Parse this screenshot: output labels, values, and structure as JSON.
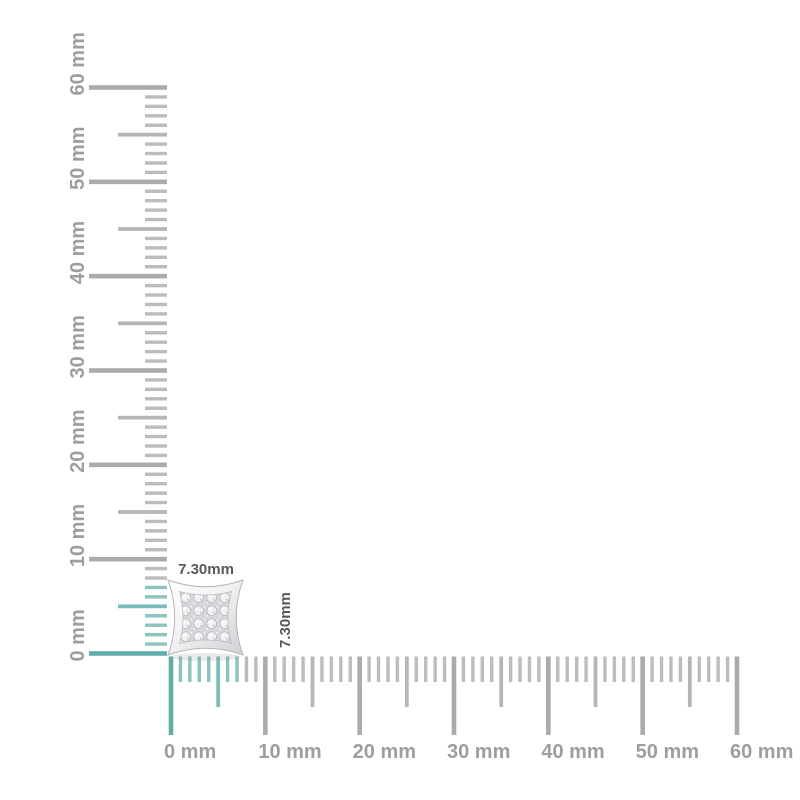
{
  "scene": {
    "description": "jewelry product dimension image with mm rulers",
    "background": "#ffffff"
  },
  "annotations": {
    "width_label": "7.30mm",
    "height_label": "7.30mm",
    "color": "#58585a"
  },
  "product": {
    "type": "square pave kite stud earring",
    "metal_light": "#ffffff",
    "metal_dark": "#cfcfd3",
    "rim_stroke": "#b5b5b9",
    "pave_base": "#d8d8dc",
    "stone_fill": "#f1f1f4",
    "stone_stroke": "#b2b2b6"
  },
  "rulers": {
    "unit": "mm",
    "range_mm": 60,
    "minor_step_mm": 1,
    "medium_step_mm": 5,
    "major_step_mm": 10,
    "highlight_extent_mm": 7,
    "colors": {
      "minor_gray": "#bcbcbc",
      "medium_gray": "#b6b6b6",
      "major_gray": "#ababab",
      "minor_teal": "#8bc3c1",
      "medium_teal": "#7cbcb9",
      "major_teal": "#60aeaa",
      "label": "#9e9e9e"
    },
    "vertical": {
      "labels": [
        "0 mm",
        "10 mm",
        "20 mm",
        "30 mm",
        "40 mm",
        "50 mm",
        "60 mm"
      ]
    },
    "horizontal": {
      "labels": [
        "0 mm",
        "10 mm",
        "20 mm",
        "30 mm",
        "40 mm",
        "50 mm",
        "60 mm"
      ]
    }
  }
}
